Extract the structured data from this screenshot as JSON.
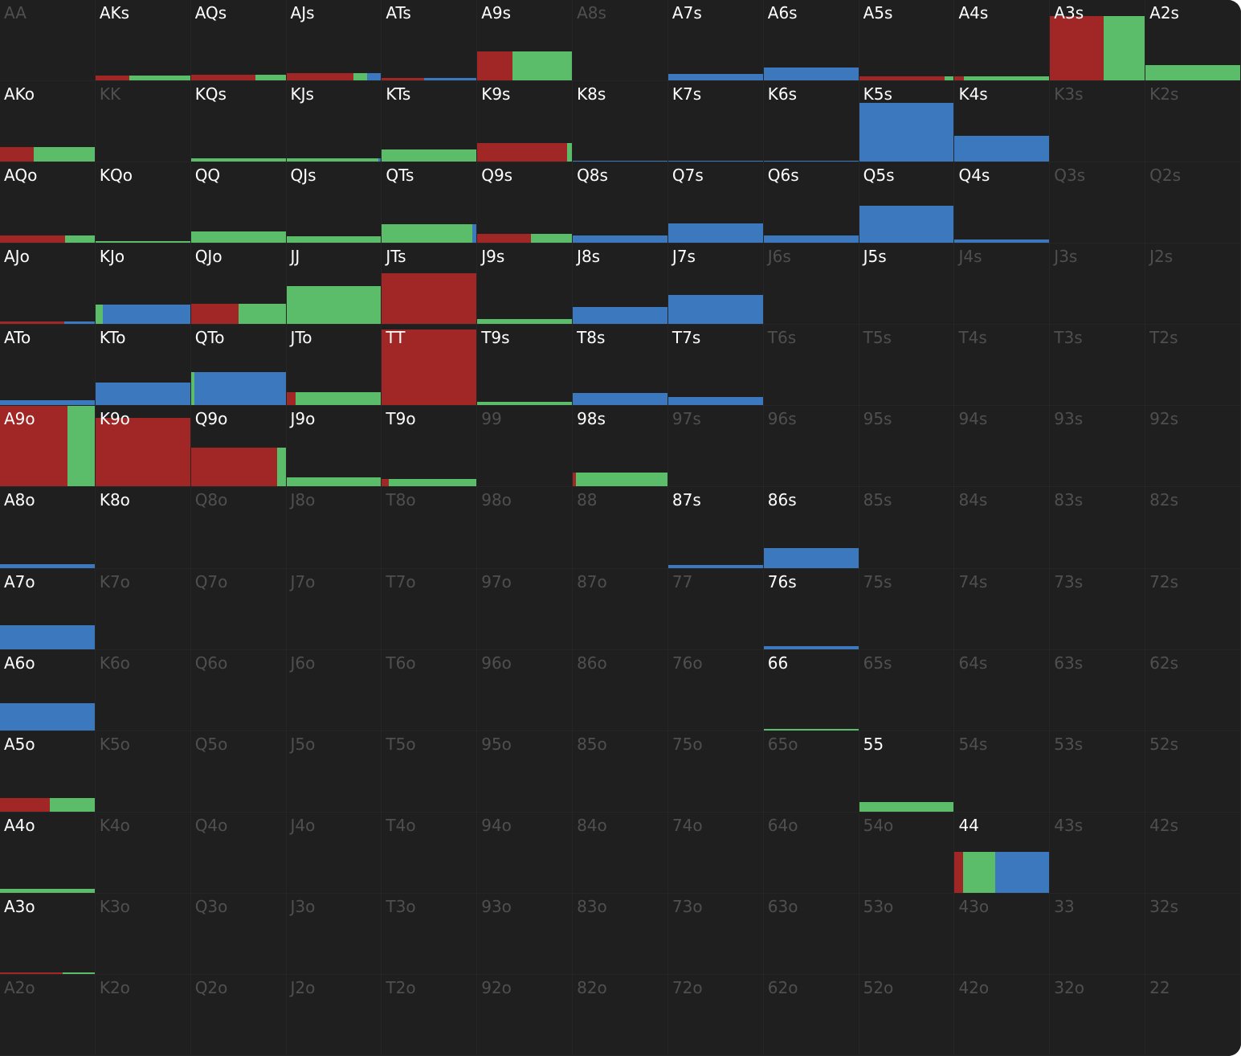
{
  "colors": {
    "red": "#a12626",
    "green": "#5bbd6a",
    "blue": "#3b78bd"
  },
  "rows": [
    [
      "AA",
      "AKs",
      "AQs",
      "AJs",
      "ATs",
      "A9s",
      "A8s",
      "A7s",
      "A6s",
      "A5s",
      "A4s",
      "A3s",
      "A2s"
    ],
    [
      "AKo",
      "KK",
      "KQs",
      "KJs",
      "KTs",
      "K9s",
      "K8s",
      "K7s",
      "K6s",
      "K5s",
      "K4s",
      "K3s",
      "K2s"
    ],
    [
      "AQo",
      "KQo",
      "QQ",
      "QJs",
      "QTs",
      "Q9s",
      "Q8s",
      "Q7s",
      "Q6s",
      "Q5s",
      "Q4s",
      "Q3s",
      "Q2s"
    ],
    [
      "AJo",
      "KJo",
      "QJo",
      "JJ",
      "JTs",
      "J9s",
      "J8s",
      "J7s",
      "J6s",
      "J5s",
      "J4s",
      "J3s",
      "J2s"
    ],
    [
      "ATo",
      "KTo",
      "QTo",
      "JTo",
      "TT",
      "T9s",
      "T8s",
      "T7s",
      "T6s",
      "T5s",
      "T4s",
      "T3s",
      "T2s"
    ],
    [
      "A9o",
      "K9o",
      "Q9o",
      "J9o",
      "T9o",
      "99",
      "98s",
      "97s",
      "96s",
      "95s",
      "94s",
      "93s",
      "92s"
    ],
    [
      "A8o",
      "K8o",
      "Q8o",
      "J8o",
      "T8o",
      "98o",
      "88",
      "87s",
      "86s",
      "85s",
      "84s",
      "83s",
      "82s"
    ],
    [
      "A7o",
      "K7o",
      "Q7o",
      "J7o",
      "T7o",
      "97o",
      "87o",
      "77",
      "76s",
      "75s",
      "74s",
      "73s",
      "72s"
    ],
    [
      "A6o",
      "K6o",
      "Q6o",
      "J6o",
      "T6o",
      "96o",
      "86o",
      "76o",
      "66",
      "65s",
      "64s",
      "63s",
      "62s"
    ],
    [
      "A5o",
      "K5o",
      "Q5o",
      "J5o",
      "T5o",
      "95o",
      "85o",
      "75o",
      "65o",
      "55",
      "54s",
      "53s",
      "52s"
    ],
    [
      "A4o",
      "K4o",
      "Q4o",
      "J4o",
      "T4o",
      "94o",
      "84o",
      "74o",
      "64o",
      "54o",
      "44",
      "43s",
      "42s"
    ],
    [
      "A3o",
      "K3o",
      "Q3o",
      "J3o",
      "T3o",
      "93o",
      "83o",
      "73o",
      "63o",
      "53o",
      "43o",
      "33",
      "32s"
    ],
    [
      "A2o",
      "K2o",
      "Q2o",
      "J2o",
      "T2o",
      "92o",
      "82o",
      "72o",
      "62o",
      "52o",
      "42o",
      "32o",
      "22"
    ]
  ],
  "hands": {
    "AKs": {
      "active": true,
      "freq": 0.06,
      "mix": [
        0.36,
        0.64,
        0
      ]
    },
    "AQs": {
      "active": true,
      "freq": 0.07,
      "mix": [
        0.68,
        0.32,
        0
      ]
    },
    "AJs": {
      "active": true,
      "freq": 0.09,
      "mix": [
        0.71,
        0.14,
        0.15
      ]
    },
    "ATs": {
      "active": true,
      "freq": 0.03,
      "mix": [
        0.45,
        0,
        0.55
      ]
    },
    "A9s": {
      "active": true,
      "freq": 0.36,
      "mix": [
        0.37,
        0.63,
        0
      ]
    },
    "A7s": {
      "active": true,
      "freq": 0.08,
      "mix": [
        0,
        0,
        1
      ]
    },
    "A6s": {
      "active": true,
      "freq": 0.16,
      "mix": [
        0,
        0,
        1
      ]
    },
    "A5s": {
      "active": true,
      "freq": 0.05,
      "mix": [
        0.9,
        0.1,
        0
      ]
    },
    "A4s": {
      "active": true,
      "freq": 0.05,
      "mix": [
        0.1,
        0.9,
        0
      ]
    },
    "A3s": {
      "active": true,
      "freq": 0.8,
      "mix": [
        0.57,
        0.43,
        0
      ]
    },
    "A2s": {
      "active": true,
      "freq": 0.19,
      "mix": [
        0,
        1,
        0
      ]
    },
    "AKo": {
      "active": true,
      "freq": 0.18,
      "mix": [
        0.36,
        0.64,
        0
      ]
    },
    "KQs": {
      "active": true,
      "freq": 0.04,
      "mix": [
        0,
        1,
        0
      ]
    },
    "KJs": {
      "active": true,
      "freq": 0.04,
      "mix": [
        0,
        0.97,
        0.03
      ]
    },
    "KTs": {
      "active": true,
      "freq": 0.15,
      "mix": [
        0,
        1,
        0
      ]
    },
    "K9s": {
      "active": true,
      "freq": 0.23,
      "mix": [
        0.95,
        0.05,
        0
      ]
    },
    "K8s": {
      "active": true,
      "freq": 0.01,
      "mix": [
        0,
        0,
        1
      ]
    },
    "K7s": {
      "active": true,
      "freq": 0.01,
      "mix": [
        0,
        0,
        1
      ]
    },
    "K6s": {
      "active": true,
      "freq": 0.01,
      "mix": [
        0,
        0,
        1
      ]
    },
    "K5s": {
      "active": true,
      "freq": 0.73,
      "mix": [
        0,
        0,
        1
      ]
    },
    "K4s": {
      "active": true,
      "freq": 0.32,
      "mix": [
        0,
        0,
        1
      ]
    },
    "AQo": {
      "active": true,
      "freq": 0.09,
      "mix": [
        0.69,
        0.31,
        0
      ]
    },
    "KQo": {
      "active": true,
      "freq": 0.02,
      "mix": [
        0,
        1,
        0
      ]
    },
    "QQ": {
      "active": true,
      "freq": 0.14,
      "mix": [
        0,
        1,
        0
      ]
    },
    "QJs": {
      "active": true,
      "freq": 0.08,
      "mix": [
        0,
        1,
        0
      ]
    },
    "QTs": {
      "active": true,
      "freq": 0.23,
      "mix": [
        0,
        0.96,
        0.04
      ]
    },
    "Q9s": {
      "active": true,
      "freq": 0.11,
      "mix": [
        0.57,
        0.43,
        0
      ]
    },
    "Q8s": {
      "active": true,
      "freq": 0.09,
      "mix": [
        0,
        0,
        1
      ]
    },
    "Q7s": {
      "active": true,
      "freq": 0.24,
      "mix": [
        0,
        0,
        1
      ]
    },
    "Q6s": {
      "active": true,
      "freq": 0.09,
      "mix": [
        0,
        0,
        1
      ]
    },
    "Q5s": {
      "active": true,
      "freq": 0.46,
      "mix": [
        0,
        0,
        1
      ]
    },
    "Q4s": {
      "active": true,
      "freq": 0.04,
      "mix": [
        0,
        0,
        1
      ]
    },
    "AJo": {
      "active": true,
      "freq": 0.03,
      "mix": [
        0.68,
        0,
        0.32
      ]
    },
    "KJo": {
      "active": true,
      "freq": 0.24,
      "mix": [
        0,
        0.08,
        0.92
      ]
    },
    "QJo": {
      "active": true,
      "freq": 0.25,
      "mix": [
        0.5,
        0.5,
        0
      ]
    },
    "JJ": {
      "active": true,
      "freq": 0.47,
      "mix": [
        0,
        1,
        0
      ]
    },
    "JTs": {
      "active": true,
      "freq": 0.63,
      "mix": [
        1,
        0,
        0
      ]
    },
    "J9s": {
      "active": true,
      "freq": 0.06,
      "mix": [
        0,
        1,
        0
      ]
    },
    "J8s": {
      "active": true,
      "freq": 0.21,
      "mix": [
        0,
        0,
        1
      ]
    },
    "J7s": {
      "active": true,
      "freq": 0.36,
      "mix": [
        0,
        0,
        1
      ]
    },
    "J5s": {
      "active": true,
      "freq": 0.0,
      "mix": [
        0,
        0,
        1
      ]
    },
    "ATo": {
      "active": true,
      "freq": 0.06,
      "mix": [
        0,
        0,
        1
      ]
    },
    "KTo": {
      "active": true,
      "freq": 0.28,
      "mix": [
        0,
        0,
        1
      ]
    },
    "QTo": {
      "active": true,
      "freq": 0.41,
      "mix": [
        0,
        0.04,
        0.96
      ]
    },
    "JTo": {
      "active": true,
      "freq": 0.16,
      "mix": [
        0.1,
        0.9,
        0
      ]
    },
    "TT": {
      "active": true,
      "freq": 0.94,
      "mix": [
        1,
        0,
        0
      ]
    },
    "T9s": {
      "active": true,
      "freq": 0.04,
      "mix": [
        0,
        1,
        0
      ]
    },
    "T8s": {
      "active": true,
      "freq": 0.15,
      "mix": [
        0,
        0,
        1
      ]
    },
    "T7s": {
      "active": true,
      "freq": 0.1,
      "mix": [
        0,
        0,
        1
      ]
    },
    "A9o": {
      "active": true,
      "freq": 1.0,
      "mix": [
        0.71,
        0.29,
        0
      ]
    },
    "K9o": {
      "active": true,
      "freq": 0.85,
      "mix": [
        1,
        0,
        0
      ]
    },
    "Q9o": {
      "active": true,
      "freq": 0.48,
      "mix": [
        0.91,
        0.09,
        0
      ]
    },
    "J9o": {
      "active": true,
      "freq": 0.11,
      "mix": [
        0,
        1,
        0
      ]
    },
    "T9o": {
      "active": true,
      "freq": 0.09,
      "mix": [
        0.07,
        0.93,
        0
      ]
    },
    "98s": {
      "active": true,
      "freq": 0.17,
      "mix": [
        0.03,
        0.97,
        0
      ]
    },
    "A8o": {
      "active": true,
      "freq": 0.05,
      "mix": [
        0,
        0,
        1
      ]
    },
    "K8o": {
      "active": true,
      "freq": 0.0,
      "mix": [
        0,
        0,
        1
      ]
    },
    "87s": {
      "active": true,
      "freq": 0.04,
      "mix": [
        0,
        0,
        1
      ]
    },
    "86s": {
      "active": true,
      "freq": 0.25,
      "mix": [
        0,
        0,
        1
      ]
    },
    "A7o": {
      "active": true,
      "freq": 0.3,
      "mix": [
        0,
        0,
        1
      ]
    },
    "76s": {
      "active": true,
      "freq": 0.04,
      "mix": [
        0,
        0,
        1
      ]
    },
    "A6o": {
      "active": true,
      "freq": 0.34,
      "mix": [
        0,
        0,
        1
      ]
    },
    "66": {
      "active": true,
      "freq": 0.02,
      "mix": [
        0,
        1,
        0
      ]
    },
    "A5o": {
      "active": true,
      "freq": 0.17,
      "mix": [
        0.53,
        0.47,
        0
      ]
    },
    "55": {
      "active": true,
      "freq": 0.12,
      "mix": [
        0,
        1,
        0
      ]
    },
    "A4o": {
      "active": true,
      "freq": 0.05,
      "mix": [
        0,
        1,
        0
      ]
    },
    "44": {
      "active": true,
      "freq": 0.51,
      "mix": [
        0.09,
        0.34,
        0.57
      ]
    },
    "A3o": {
      "active": true,
      "freq": 0.02,
      "mix": [
        0.66,
        0.34,
        0
      ]
    }
  }
}
